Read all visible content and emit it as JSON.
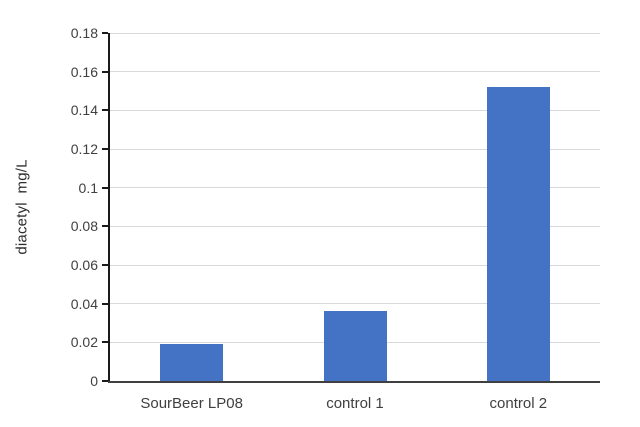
{
  "chart_data": {
    "type": "bar",
    "title": "",
    "xlabel": "",
    "ylabel": "diacetyl  mg/L",
    "categories": [
      "SourBeer LP08",
      "control 1",
      "control 2"
    ],
    "values": [
      0.019,
      0.036,
      0.152
    ],
    "ylim": [
      0,
      0.18
    ],
    "ytick_labels": [
      "0",
      "0.02",
      "0.04",
      "0.06",
      "0.08",
      "0.1",
      "0.12",
      "0.14",
      "0.16",
      "0.18"
    ],
    "ytick_values": [
      0,
      0.02,
      0.04,
      0.06,
      0.08,
      0.1,
      0.12,
      0.14,
      0.16,
      0.18
    ],
    "grid": "horizontal",
    "legend_position": "none",
    "colors": {
      "bar_fill": "#4472c4",
      "gridline": "#d9d9d9",
      "y_axis_line": "#1a1a1a",
      "x_axis_line": "#404040",
      "tick_text": "#404040",
      "axis_title_text": "#2e2e2e",
      "background": "#ffffff"
    }
  }
}
